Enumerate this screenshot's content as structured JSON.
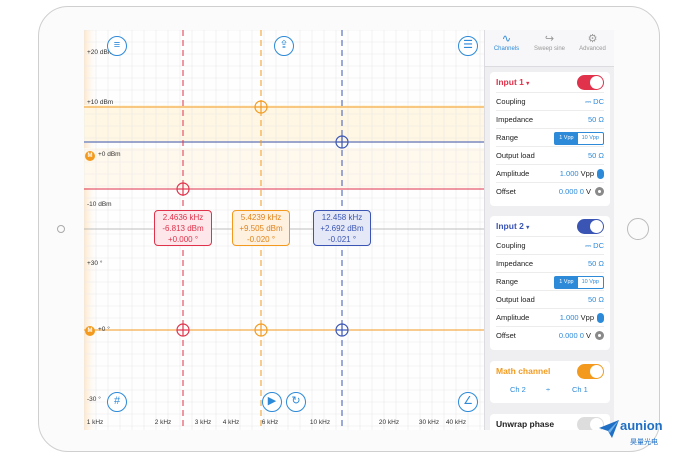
{
  "tabs": [
    {
      "label": "Channels",
      "icon": "waveform-icon"
    },
    {
      "label": "Sweep sine",
      "icon": "sweep-icon"
    },
    {
      "label": "Advanced",
      "icon": "gear-icon"
    }
  ],
  "input1": {
    "title": "Input 1",
    "color": "#e0324b",
    "enabled": true,
    "coupling_label": "Coupling",
    "coupling_value": "DC",
    "impedance_label": "Impedance",
    "impedance_value": "50 Ω",
    "range_label": "Range",
    "range_options": [
      "1 Vpp",
      "10 Vpp"
    ],
    "range_selected": "1 Vpp",
    "output_load_label": "Output load",
    "output_load_value": "50 Ω",
    "amplitude_label": "Amplitude",
    "amplitude_value": "1.000",
    "amplitude_unit": "Vpp",
    "offset_label": "Offset",
    "offset_value": "0.000 0",
    "offset_unit": "V"
  },
  "input2": {
    "title": "Input 2",
    "color": "#3a55b4",
    "enabled": true,
    "coupling_label": "Coupling",
    "coupling_value": "DC",
    "impedance_label": "Impedance",
    "impedance_value": "50 Ω",
    "range_label": "Range",
    "range_options": [
      "1 Vpp",
      "10 Vpp"
    ],
    "range_selected": "1 Vpp",
    "output_load_label": "Output load",
    "output_load_value": "50 Ω",
    "amplitude_label": "Amplitude",
    "amplitude_value": "1.000",
    "amplitude_unit": "Vpp",
    "offset_label": "Offset",
    "offset_value": "0.000 0",
    "offset_unit": "V"
  },
  "math": {
    "title": "Math channel",
    "enabled": true,
    "color": "#f39a1e",
    "left": "Ch 2",
    "op": "÷",
    "right": "Ch 1"
  },
  "unwrap": {
    "title": "Unwrap phase"
  },
  "plot": {
    "y_labels": [
      "+20 dBm",
      "+10 dBm",
      "+0 dBm",
      "-10 dBm",
      "+30 °",
      "+0 °",
      "-30 °"
    ],
    "x_labels": [
      "1 kHz",
      "2 kHz",
      "3 kHz",
      "4 kHz",
      "6 kHz",
      "10 kHz",
      "20 kHz",
      "30 kHz",
      "40 kHz"
    ],
    "math_marker_label": "M",
    "markers": [
      {
        "freq": "2.4636 kHz",
        "mag": "-6.813 dBm",
        "phase": "+0.000 °",
        "color": "#e0324b"
      },
      {
        "freq": "5.4239 kHz",
        "mag": "+9.505 dBm",
        "phase": "-0.020 °",
        "color": "#f39a1e"
      },
      {
        "freq": "12.458 kHz",
        "mag": "+2.692 dBm",
        "phase": "-0.021 °",
        "color": "#3a55b4"
      }
    ]
  },
  "brand": {
    "name": "aunion",
    "cn": "昊量光电"
  }
}
